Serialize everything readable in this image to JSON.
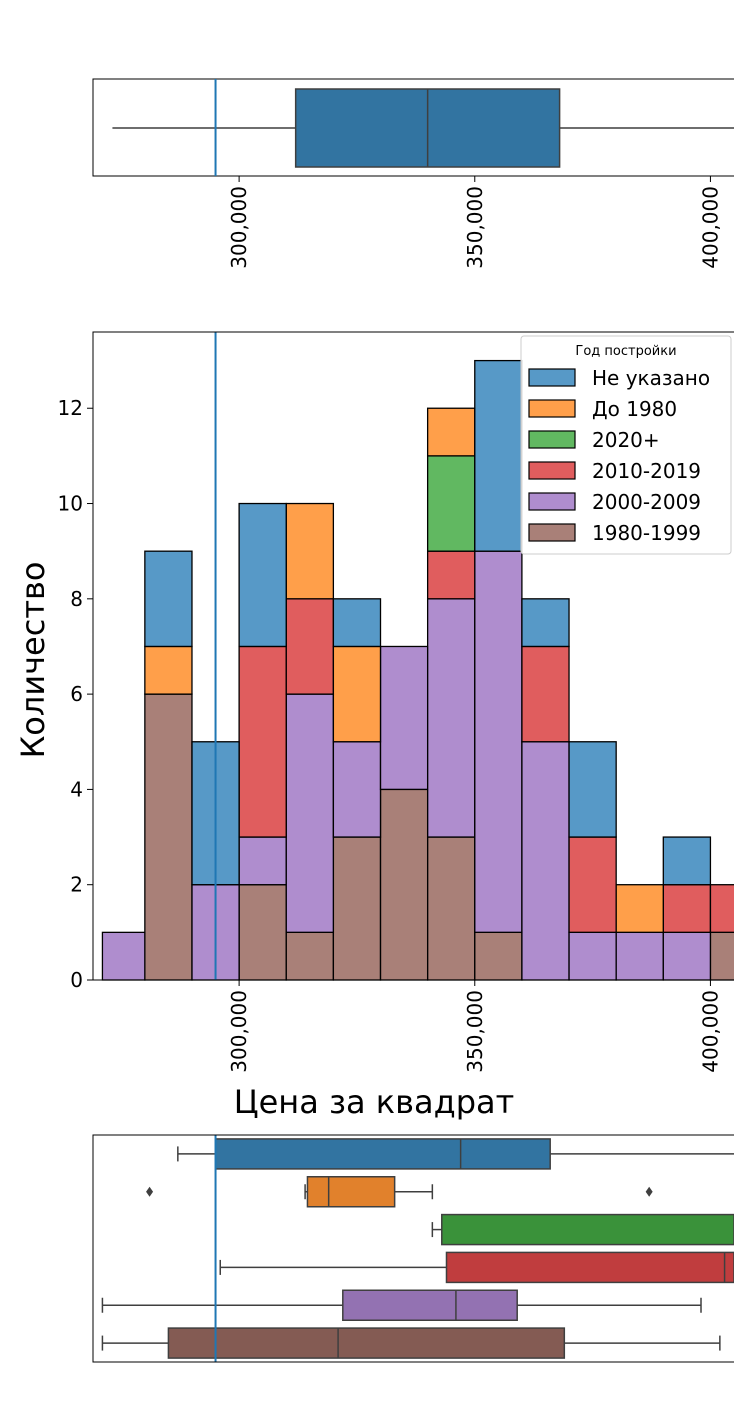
{
  "colors": {
    "Не указано": "#1f77b4",
    "До 1980": "#ff7f0e",
    "2020+": "#2ca02c",
    "2010-2019": "#d62728",
    "2000-2009": "#9467bd",
    "1980-1999": "#8c564b"
  },
  "chart_data": [
    {
      "type": "boxplot",
      "xlim": [
        269000,
        405000
      ],
      "x_ticks": [
        300000,
        350000,
        400000
      ],
      "x_tick_labels": [
        "300,000",
        "350,000",
        "400,000"
      ],
      "reference_line_x": 295000,
      "box": {
        "whisker_low": 271000,
        "q1": 312000,
        "median": 340000,
        "q3": 368000,
        "whisker_high": 405000,
        "color": "#1f77b4"
      }
    },
    {
      "type": "bar",
      "stacked": true,
      "xlabel": "Цена за квадрат",
      "ylabel": "Количество",
      "xlim": [
        269000,
        405000
      ],
      "ylim": [
        0,
        13.6
      ],
      "x_ticks": [
        300000,
        350000,
        400000
      ],
      "x_tick_labels": [
        "300,000",
        "350,000",
        "400,000"
      ],
      "y_ticks": [
        0,
        2,
        4,
        6,
        8,
        10,
        12
      ],
      "reference_line_x": 295000,
      "bin_edges": [
        271000,
        280000,
        290000,
        300000,
        310000,
        320000,
        330000,
        340000,
        350000,
        360000,
        370000,
        380000,
        390000,
        400000,
        410000
      ],
      "legend": {
        "title": "Год постройки",
        "position": "top-right",
        "entries": [
          "Не указано",
          "До 1980",
          "2020+",
          "2010-2019",
          "2000-2009",
          "1980-1999"
        ]
      },
      "series": [
        {
          "name": "1980-1999",
          "values": [
            0,
            6,
            0,
            2,
            1,
            3,
            4,
            3,
            1,
            0,
            0,
            0,
            0,
            1
          ]
        },
        {
          "name": "2000-2009",
          "values": [
            1,
            0,
            2,
            1,
            5,
            2,
            3,
            5,
            8,
            5,
            1,
            1,
            1,
            0
          ]
        },
        {
          "name": "2010-2019",
          "values": [
            0,
            0,
            0,
            4,
            2,
            0,
            0,
            1,
            0,
            2,
            2,
            0,
            1,
            1
          ]
        },
        {
          "name": "2020+",
          "values": [
            0,
            0,
            0,
            0,
            0,
            0,
            0,
            2,
            0,
            0,
            0,
            0,
            0,
            0
          ]
        },
        {
          "name": "До 1980",
          "values": [
            0,
            1,
            0,
            0,
            2,
            2,
            0,
            1,
            0,
            0,
            0,
            1,
            0,
            0
          ]
        },
        {
          "name": "Не указано",
          "values": [
            0,
            2,
            3,
            3,
            0,
            1,
            0,
            0,
            4,
            1,
            2,
            0,
            1,
            0
          ]
        }
      ]
    },
    {
      "type": "boxplot",
      "xlim": [
        269000,
        405000
      ],
      "reference_line_x": 295000,
      "boxes": [
        {
          "name": "Не указано",
          "whisker_low": 287000,
          "q1": 295000,
          "median": 347000,
          "q3": 366000,
          "whisker_high": 405000
        },
        {
          "name": "До 1980",
          "whisker_low": 314000,
          "q1": 314500,
          "median": 319000,
          "q3": 333000,
          "whisker_high": 341000,
          "fliers": [
            281000,
            387000
          ]
        },
        {
          "name": "2020+",
          "whisker_low": 341000,
          "q1": 343000,
          "median": 405000,
          "q3": 405000,
          "whisker_high": 405000
        },
        {
          "name": "2010-2019",
          "whisker_low": 296000,
          "q1": 344000,
          "median": 403000,
          "q3": 405000,
          "whisker_high": 405000
        },
        {
          "name": "2000-2009",
          "whisker_low": 271000,
          "q1": 322000,
          "median": 346000,
          "q3": 359000,
          "whisker_high": 398000
        },
        {
          "name": "1980-1999",
          "whisker_low": 271000,
          "q1": 285000,
          "median": 321000,
          "q3": 369000,
          "whisker_high": 402000
        }
      ]
    }
  ]
}
